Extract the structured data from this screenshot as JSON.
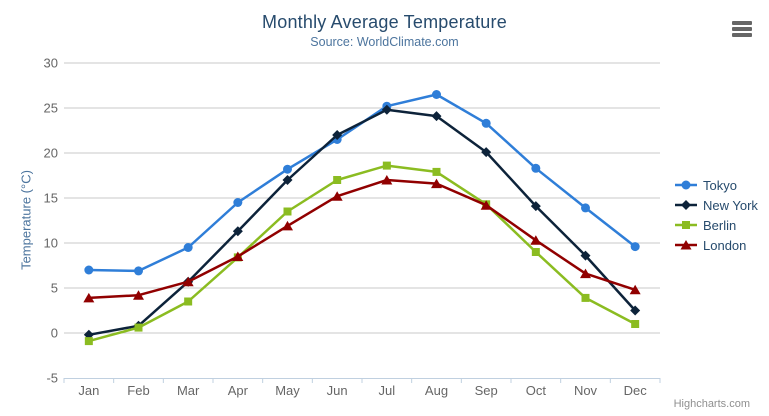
{
  "chart_data": {
    "type": "line",
    "title": "Monthly Average Temperature",
    "subtitle": "Source: WorldClimate.com",
    "categories": [
      "Jan",
      "Feb",
      "Mar",
      "Apr",
      "May",
      "Jun",
      "Jul",
      "Aug",
      "Sep",
      "Oct",
      "Nov",
      "Dec"
    ],
    "series": [
      {
        "name": "Tokyo",
        "color": "#2f7ed8",
        "marker": "circle",
        "values": [
          7.0,
          6.9,
          9.5,
          14.5,
          18.2,
          21.5,
          25.2,
          26.5,
          23.3,
          18.3,
          13.9,
          9.6
        ]
      },
      {
        "name": "New York",
        "color": "#0d233a",
        "marker": "diamond",
        "values": [
          -0.2,
          0.8,
          5.7,
          11.3,
          17.0,
          22.0,
          24.8,
          24.1,
          20.1,
          14.1,
          8.6,
          2.5
        ]
      },
      {
        "name": "Berlin",
        "color": "#8bbc21",
        "marker": "square",
        "values": [
          -0.9,
          0.6,
          3.5,
          8.4,
          13.5,
          17.0,
          18.6,
          17.9,
          14.3,
          9.0,
          3.9,
          1.0
        ]
      },
      {
        "name": "London",
        "color": "#910000",
        "marker": "triangle",
        "values": [
          3.9,
          4.2,
          5.7,
          8.5,
          11.9,
          15.2,
          17.0,
          16.6,
          14.2,
          10.3,
          6.6,
          4.8
        ]
      }
    ],
    "xlabel": "",
    "ylabel": "Temperature (°C)",
    "ylim": [
      -5,
      30
    ],
    "yticks": [
      -5,
      0,
      5,
      10,
      15,
      20,
      25,
      30
    ],
    "grid": true,
    "legend_position": "right"
  },
  "controls": {
    "context_menu_icon": "hamburger-icon"
  },
  "credits": {
    "label": "Highcharts.com"
  },
  "colors": {
    "title": "#274b6d",
    "subtitle": "#4d759e",
    "axis_label": "#666666",
    "axis_title": "#4d759e",
    "grid": "#c9c9c9",
    "axis_line": "#c0d0e0",
    "legend_text": "#274b6d",
    "credits": "#8f8f8f",
    "menu_icon": "#666666"
  }
}
